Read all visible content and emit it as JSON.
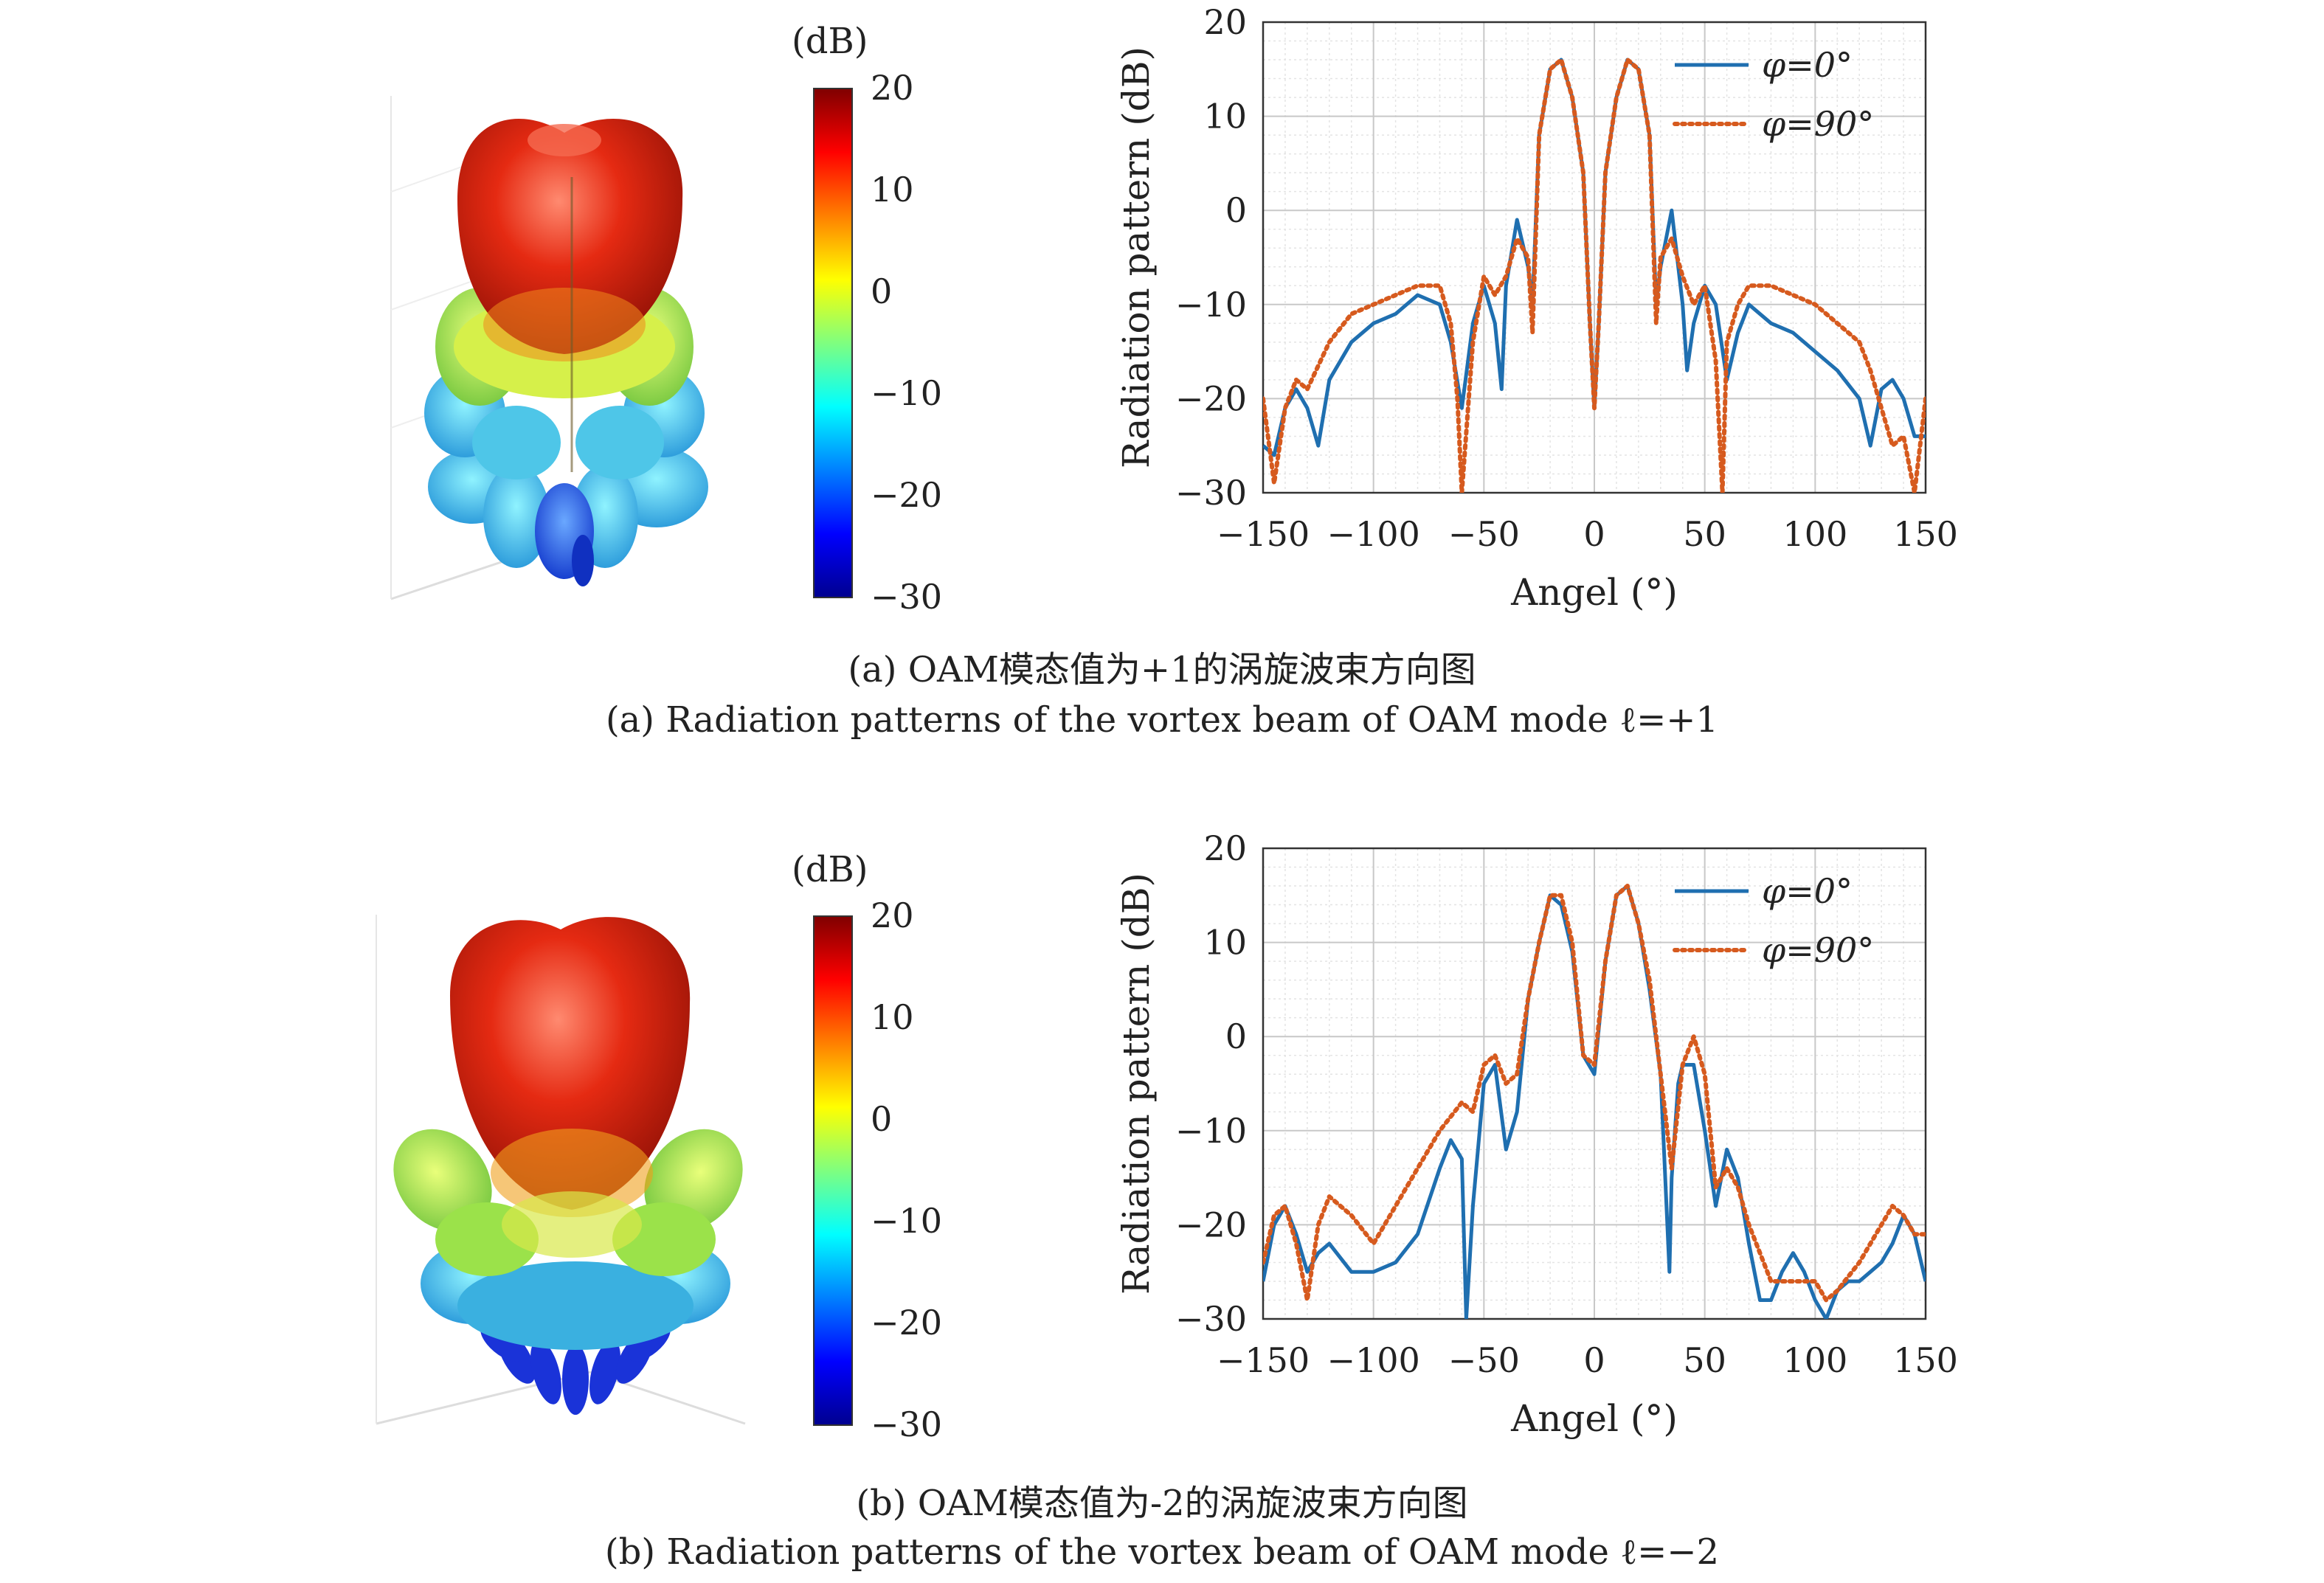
{
  "panels": [
    {
      "caption_cn": "(a) OAM模态值为+1的涡旋波束方向图",
      "caption_en": "(a) Radiation patterns of the vortex beam of OAM mode ℓ=+1",
      "colorbar": {
        "title": "(dB)",
        "ticks": [
          "20",
          "10",
          "0",
          "−10",
          "−20",
          "−30"
        ]
      },
      "colors": {
        "series0": "#1f6fb0",
        "series1": "#d65a1e"
      }
    },
    {
      "caption_cn": "(b) OAM模态值为-2的涡旋波束方向图",
      "caption_en": "(b) Radiation patterns of the vortex beam of OAM mode ℓ=−2",
      "colorbar": {
        "title": "(dB)",
        "ticks": [
          "20",
          "10",
          "0",
          "−10",
          "−20",
          "−30"
        ]
      },
      "colors": {
        "series0": "#1f6fb0",
        "series1": "#d65a1e"
      }
    }
  ],
  "chart_data": [
    {
      "type": "line",
      "xlabel": "Angel (°)",
      "ylabel": "Radiation pattern (dB)",
      "xlim": [
        -150,
        150
      ],
      "ylim": [
        -30,
        20
      ],
      "xticks": [
        -150,
        -100,
        -50,
        0,
        50,
        100,
        150
      ],
      "yticks": [
        -30,
        -20,
        -10,
        0,
        10,
        20
      ],
      "xtick_labels": [
        "−150",
        "−100",
        "−50",
        "0",
        "50",
        "100",
        "150"
      ],
      "ytick_labels": [
        "−30",
        "−20",
        "−10",
        "0",
        "10",
        "20"
      ],
      "grid": true,
      "legend_position": "top-right",
      "series": [
        {
          "name": "φ=0°",
          "style": "solid",
          "x": [
            -150,
            -145,
            -140,
            -135,
            -130,
            -125,
            -120,
            -110,
            -100,
            -90,
            -80,
            -70,
            -65,
            -60,
            -55,
            -50,
            -45,
            -42,
            -40,
            -35,
            -30,
            -28,
            -25,
            -20,
            -15,
            -10,
            -5,
            -2,
            0,
            2,
            5,
            10,
            15,
            20,
            25,
            28,
            30,
            35,
            40,
            42,
            45,
            50,
            55,
            60,
            65,
            70,
            80,
            90,
            100,
            110,
            120,
            125,
            130,
            135,
            140,
            145,
            150
          ],
          "y": [
            -25,
            -26,
            -21,
            -19,
            -21,
            -25,
            -18,
            -14,
            -12,
            -11,
            -9,
            -10,
            -14,
            -21,
            -12,
            -8,
            -12,
            -19,
            -8,
            -1,
            -6,
            -10,
            8,
            15,
            16,
            12,
            4,
            -12,
            -21,
            -12,
            4,
            12,
            16,
            15,
            8,
            -10,
            -6,
            0,
            -10,
            -17,
            -12,
            -8,
            -10,
            -18,
            -13,
            -10,
            -12,
            -13,
            -15,
            -17,
            -20,
            -25,
            -19,
            -18,
            -20,
            -24,
            -24
          ]
        },
        {
          "name": "φ=90°",
          "style": "dotted",
          "x": [
            -150,
            -145,
            -140,
            -135,
            -130,
            -120,
            -110,
            -100,
            -90,
            -80,
            -70,
            -65,
            -62,
            -60,
            -55,
            -50,
            -45,
            -40,
            -35,
            -30,
            -28,
            -25,
            -20,
            -15,
            -10,
            -5,
            -2,
            0,
            2,
            5,
            10,
            15,
            20,
            25,
            28,
            30,
            35,
            40,
            45,
            50,
            55,
            58,
            60,
            65,
            70,
            80,
            90,
            100,
            110,
            120,
            125,
            130,
            135,
            140,
            145,
            150
          ],
          "y": [
            -20,
            -29,
            -21,
            -18,
            -19,
            -14,
            -11,
            -10,
            -9,
            -8,
            -8,
            -12,
            -20,
            -30,
            -14,
            -7,
            -9,
            -7,
            -3,
            -5,
            -13,
            8,
            15,
            16,
            12,
            4,
            -12,
            -21,
            -12,
            4,
            12,
            16,
            15,
            8,
            -12,
            -5,
            -3,
            -7,
            -10,
            -8,
            -16,
            -30,
            -14,
            -10,
            -8,
            -8,
            -9,
            -10,
            -12,
            -14,
            -17,
            -21,
            -25,
            -24,
            -30,
            -20
          ]
        }
      ]
    },
    {
      "type": "line",
      "xlabel": "Angel (°)",
      "ylabel": "Radiation pattern (dB)",
      "xlim": [
        -150,
        150
      ],
      "ylim": [
        -30,
        20
      ],
      "xticks": [
        -150,
        -100,
        -50,
        0,
        50,
        100,
        150
      ],
      "yticks": [
        -30,
        -20,
        -10,
        0,
        10,
        20
      ],
      "xtick_labels": [
        "−150",
        "−100",
        "−50",
        "0",
        "50",
        "100",
        "150"
      ],
      "ytick_labels": [
        "−30",
        "−20",
        "−10",
        "0",
        "10",
        "20"
      ],
      "grid": true,
      "legend_position": "top-right",
      "series": [
        {
          "name": "φ=0°",
          "style": "solid",
          "x": [
            -150,
            -145,
            -140,
            -135,
            -130,
            -125,
            -120,
            -110,
            -100,
            -90,
            -80,
            -70,
            -65,
            -60,
            -58,
            -55,
            -50,
            -45,
            -40,
            -35,
            -30,
            -25,
            -20,
            -15,
            -10,
            -5,
            0,
            5,
            10,
            15,
            20,
            25,
            30,
            34,
            35,
            38,
            40,
            45,
            50,
            55,
            60,
            65,
            70,
            75,
            80,
            85,
            90,
            95,
            100,
            105,
            110,
            115,
            120,
            125,
            130,
            135,
            140,
            145,
            150
          ],
          "y": [
            -26,
            -20,
            -18,
            -21,
            -25,
            -23,
            -22,
            -25,
            -25,
            -24,
            -21,
            -14,
            -11,
            -13,
            -30,
            -18,
            -5,
            -3,
            -12,
            -8,
            4,
            10,
            15,
            14,
            9,
            -2,
            -4,
            8,
            15,
            16,
            12,
            5,
            -4,
            -25,
            -15,
            -5,
            -3,
            -3,
            -10,
            -18,
            -12,
            -15,
            -22,
            -28,
            -28,
            -25,
            -23,
            -25,
            -28,
            -30,
            -27,
            -26,
            -26,
            -25,
            -24,
            -22,
            -19,
            -21,
            -26
          ]
        },
        {
          "name": "φ=90°",
          "style": "dotted",
          "x": [
            -150,
            -145,
            -140,
            -135,
            -130,
            -125,
            -120,
            -110,
            -100,
            -90,
            -80,
            -70,
            -60,
            -55,
            -50,
            -45,
            -40,
            -35,
            -30,
            -25,
            -20,
            -15,
            -10,
            -5,
            0,
            5,
            10,
            15,
            20,
            25,
            30,
            35,
            40,
            45,
            50,
            55,
            60,
            65,
            70,
            80,
            90,
            100,
            105,
            110,
            120,
            130,
            135,
            140,
            145,
            150
          ],
          "y": [
            -24,
            -19,
            -18,
            -22,
            -28,
            -20,
            -17,
            -19,
            -22,
            -18,
            -14,
            -10,
            -7,
            -8,
            -3,
            -2,
            -5,
            -4,
            4,
            10,
            15,
            15,
            10,
            -2,
            -3,
            8,
            15,
            16,
            12,
            6,
            -4,
            -14,
            -3,
            0,
            -4,
            -16,
            -14,
            -16,
            -20,
            -26,
            -26,
            -26,
            -28,
            -27,
            -24,
            -20,
            -18,
            -19,
            -21,
            -21
          ]
        }
      ]
    }
  ]
}
